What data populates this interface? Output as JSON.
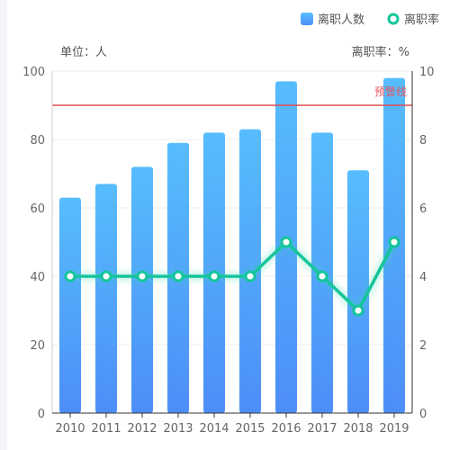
{
  "chart_data": {
    "type": "bar",
    "categories": [
      "2010",
      "2011",
      "2012",
      "2013",
      "2014",
      "2015",
      "2016",
      "2017",
      "2018",
      "2019"
    ],
    "series": [
      {
        "name": "离职人数",
        "type": "bar",
        "axis": "left",
        "color": "#4fa8fb",
        "values": [
          63,
          67,
          72,
          79,
          82,
          83,
          97,
          82,
          71,
          98
        ]
      },
      {
        "name": "离职率",
        "type": "line",
        "axis": "right",
        "color": "#14c59a",
        "values": [
          4,
          4,
          4,
          4,
          4,
          4,
          5,
          4,
          3,
          5
        ]
      }
    ],
    "ylim": [
      0,
      100
    ],
    "yticks": [
      0,
      20,
      40,
      60,
      80,
      100
    ],
    "y2lim": [
      0,
      10
    ],
    "y2ticks": [
      0,
      2,
      4,
      6,
      8,
      10
    ],
    "ylabel": "单位：人",
    "y2label": "离职率：%",
    "warning_line": {
      "label": "预警线",
      "value": 90,
      "color": "#e04b4b"
    },
    "legend_position": "top-right"
  }
}
